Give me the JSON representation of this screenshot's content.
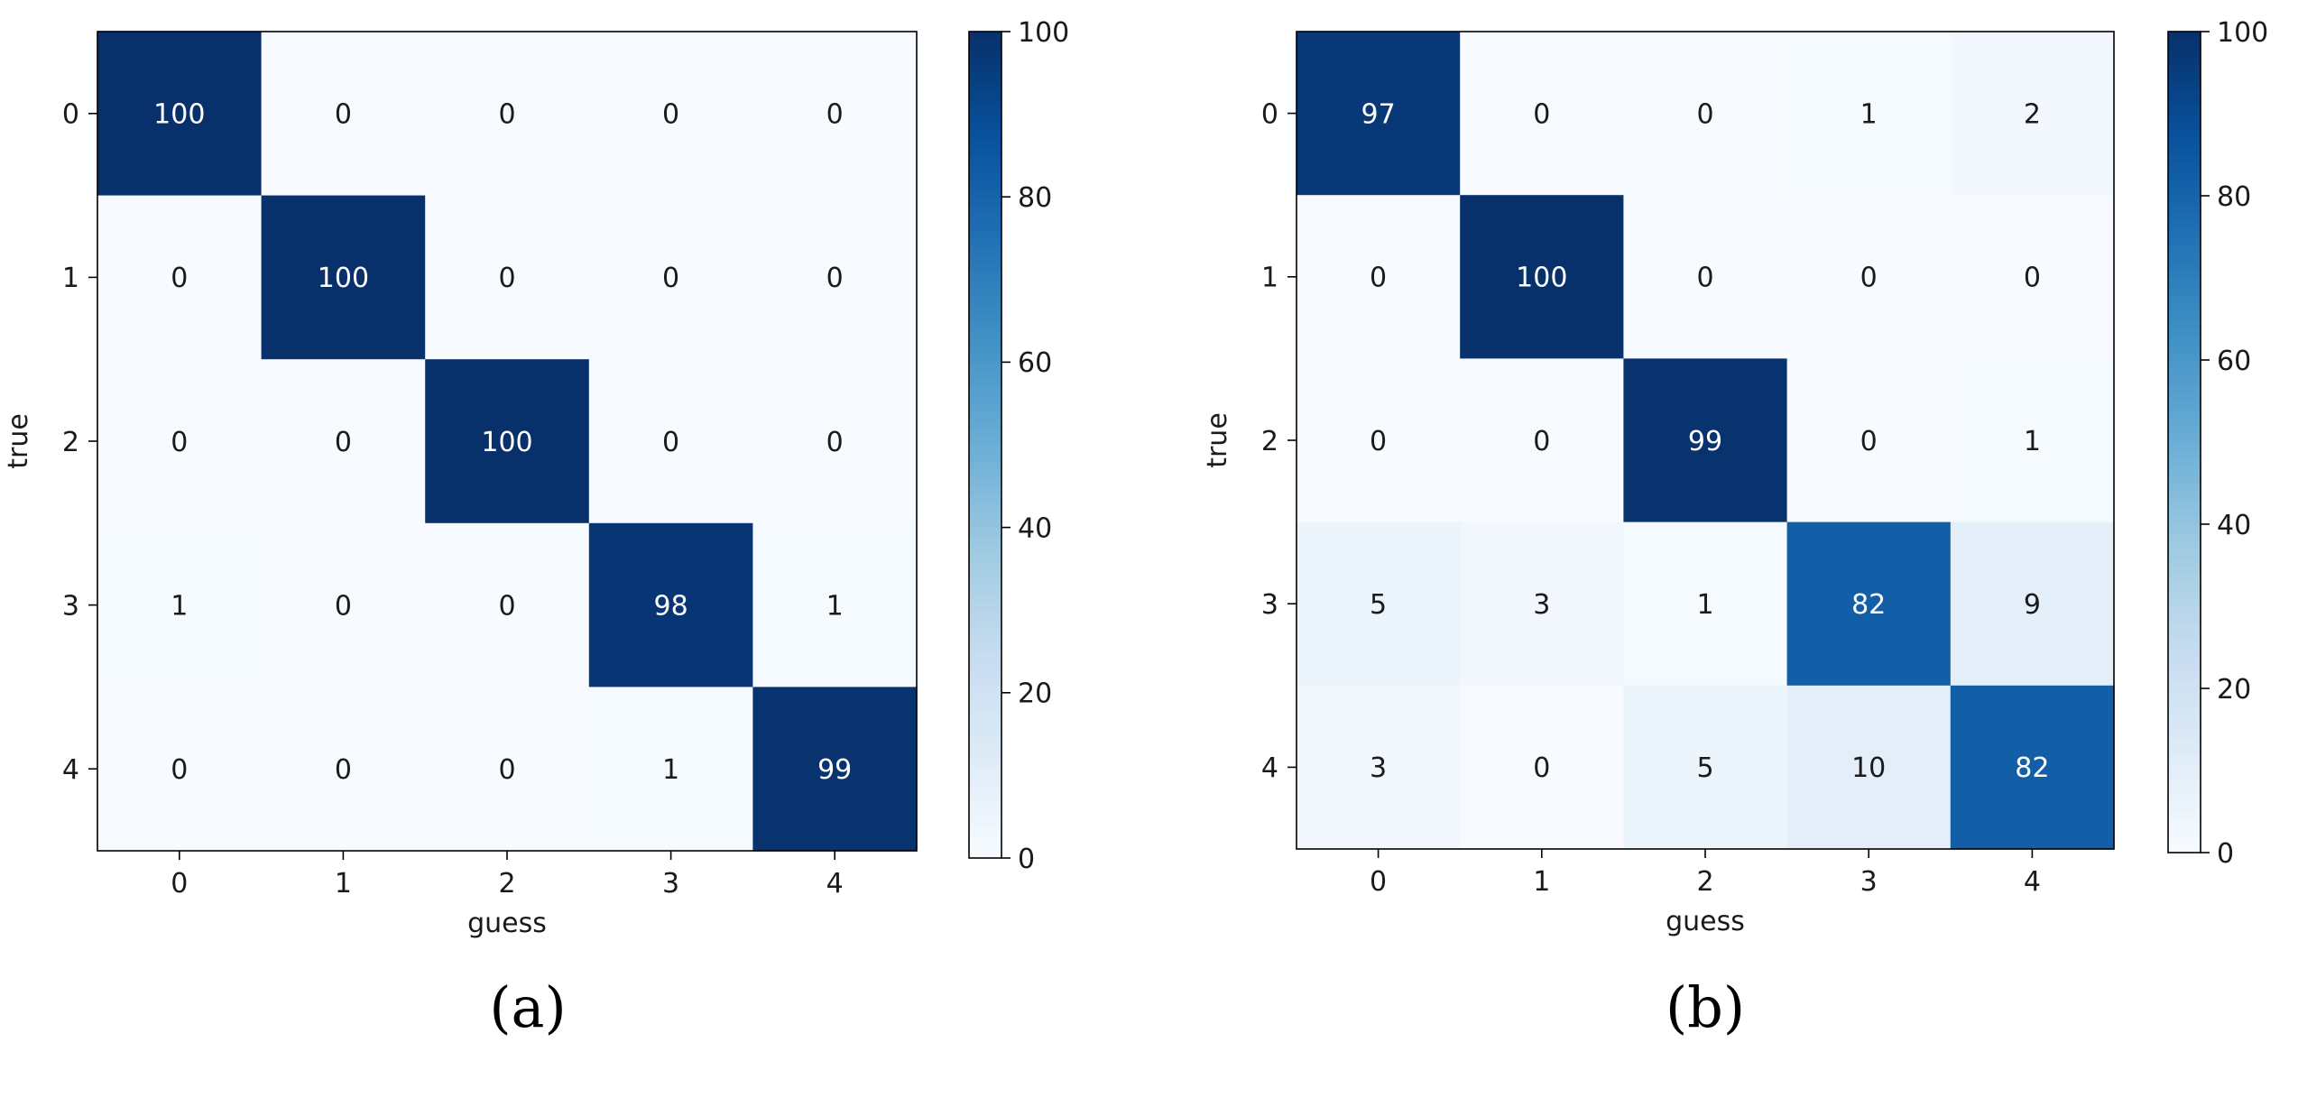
{
  "chart_data": [
    {
      "type": "heatmap",
      "title": "",
      "xlabel": "guess",
      "ylabel": "true",
      "x_ticks": [
        "0",
        "1",
        "2",
        "3",
        "4"
      ],
      "y_ticks": [
        "0",
        "1",
        "2",
        "3",
        "4"
      ],
      "values": [
        [
          100,
          0,
          0,
          0,
          0
        ],
        [
          0,
          100,
          0,
          0,
          0
        ],
        [
          0,
          0,
          100,
          0,
          0
        ],
        [
          1,
          0,
          0,
          98,
          1
        ],
        [
          0,
          0,
          0,
          1,
          99
        ]
      ],
      "colorbar": {
        "range": [
          0,
          100
        ],
        "ticks": [
          "0",
          "20",
          "40",
          "60",
          "80",
          "100"
        ]
      },
      "colormap": "Blues",
      "grid": false,
      "panel_label": "(a)"
    },
    {
      "type": "heatmap",
      "title": "",
      "xlabel": "guess",
      "ylabel": "true",
      "x_ticks": [
        "0",
        "1",
        "2",
        "3",
        "4"
      ],
      "y_ticks": [
        "0",
        "1",
        "2",
        "3",
        "4"
      ],
      "values": [
        [
          97,
          0,
          0,
          1,
          2
        ],
        [
          0,
          100,
          0,
          0,
          0
        ],
        [
          0,
          0,
          99,
          0,
          1
        ],
        [
          5,
          3,
          1,
          82,
          9
        ],
        [
          3,
          0,
          5,
          10,
          82
        ]
      ],
      "colorbar": {
        "range": [
          0,
          100
        ],
        "ticks": [
          "0",
          "20",
          "40",
          "60",
          "80",
          "100"
        ]
      },
      "colormap": "Blues",
      "grid": false,
      "panel_label": "(b)"
    }
  ]
}
